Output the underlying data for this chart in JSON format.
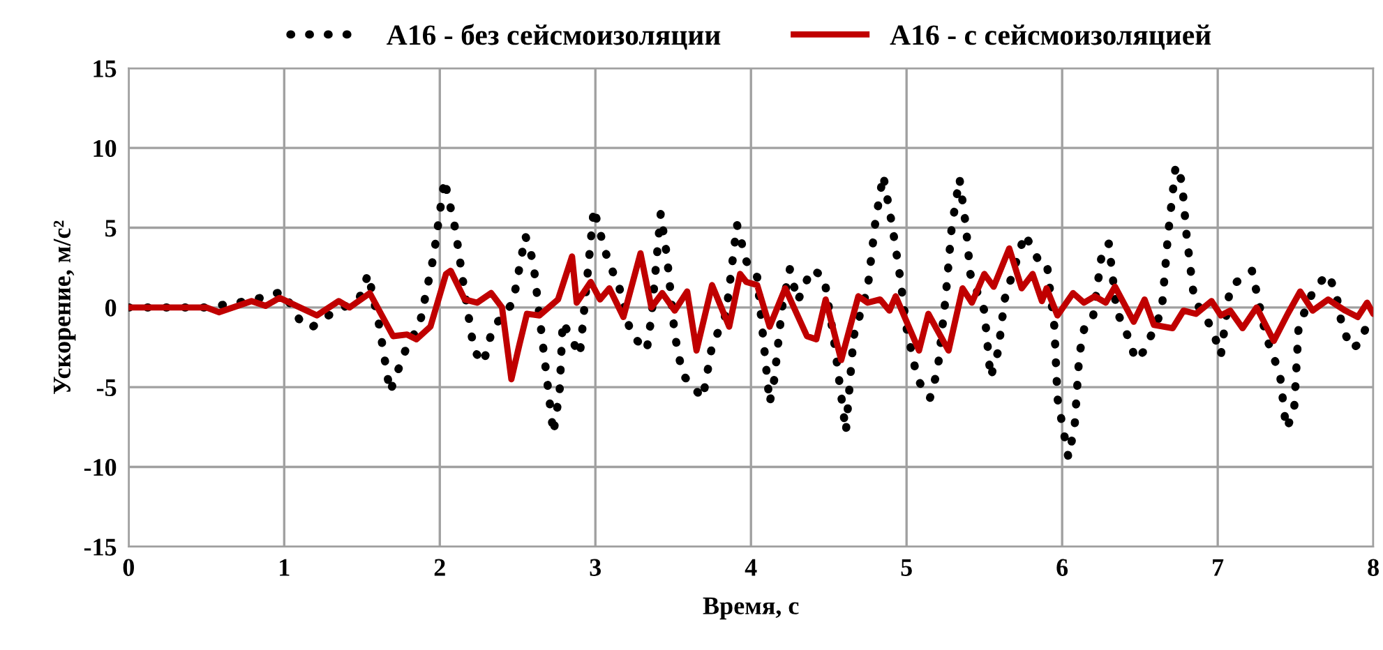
{
  "chart_data": {
    "type": "line",
    "xlabel": "Время, с",
    "ylabel": "Ускорение, м/с²",
    "xlim": [
      0,
      8
    ],
    "ylim": [
      -15,
      15
    ],
    "xticks": [
      0,
      1,
      2,
      3,
      4,
      5,
      6,
      7,
      8
    ],
    "yticks": [
      -15,
      -10,
      -5,
      0,
      5,
      10,
      15
    ],
    "grid": true,
    "legend": "top",
    "series": [
      {
        "name": "А16 - без сейсмоизоляции",
        "color": "#000000",
        "line_style": "dotted",
        "x": [
          0,
          0.5,
          0.7,
          0.85,
          0.99,
          1.1,
          1.17,
          1.3,
          1.48,
          1.54,
          1.61,
          1.68,
          1.79,
          1.87,
          1.96,
          2.03,
          2.1,
          2.15,
          2.22,
          2.28,
          2.34,
          2.47,
          2.55,
          2.6,
          2.65,
          2.73,
          2.77,
          2.79,
          2.9,
          2.99,
          3.06,
          3.1,
          3.15,
          3.23,
          3.33,
          3.36,
          3.42,
          3.46,
          3.51,
          3.56,
          3.69,
          3.75,
          3.84,
          3.91,
          3.97,
          4.04,
          4.12,
          4.15,
          4.2,
          4.25,
          4.3,
          4.39,
          4.47,
          4.53,
          4.61,
          4.66,
          4.75,
          4.8,
          4.85,
          4.91,
          4.96,
          5.0,
          5.07,
          5.15,
          5.2,
          5.25,
          5.29,
          5.34,
          5.38,
          5.41,
          5.5,
          5.54,
          5.59,
          5.63,
          5.76,
          5.84,
          5.9,
          5.95,
          5.97,
          6.04,
          6.08,
          6.11,
          6.15,
          6.2,
          6.26,
          6.3,
          6.35,
          6.44,
          6.47,
          6.53,
          6.64,
          6.68,
          6.73,
          6.77,
          6.8,
          6.85,
          6.92,
          6.98,
          7.02,
          7.08,
          7.22,
          7.26,
          7.31,
          7.4,
          7.44,
          7.49,
          7.52,
          7.62,
          7.71,
          7.76,
          7.8,
          7.86,
          7.92,
          7.98
        ],
        "values": [
          0,
          0,
          0.3,
          0.6,
          1.0,
          -0.8,
          -1.3,
          -0.4,
          0.5,
          2.1,
          -1.1,
          -5.3,
          -2.4,
          -1.1,
          3.2,
          8.0,
          4.9,
          1.6,
          -2.7,
          -3.5,
          -1.3,
          0.3,
          4.5,
          2.9,
          -1.3,
          -7.9,
          -5.3,
          -0.9,
          -3.0,
          6.2,
          3.6,
          2.5,
          1.4,
          -1.7,
          -2.7,
          -0.6,
          5.9,
          3.2,
          -1.7,
          -4.2,
          -5.7,
          -2.4,
          -0.4,
          5.2,
          2.9,
          1.9,
          -6.0,
          -4.5,
          0,
          2.4,
          0.4,
          2.4,
          1.9,
          -1.8,
          -7.8,
          -1.8,
          1.2,
          5.4,
          8.3,
          5.0,
          1.8,
          -1.3,
          -4.5,
          -5.7,
          -3.9,
          0.5,
          5.0,
          8.1,
          5.2,
          2.1,
          -0.2,
          -4.4,
          -2.7,
          0.5,
          4.6,
          3.1,
          2.9,
          -1.2,
          -5.7,
          -9.4,
          -7.5,
          -3.0,
          -0.9,
          -0.5,
          3.7,
          4.0,
          -0.2,
          -2.2,
          -3.3,
          -2.7,
          -0.2,
          4.5,
          8.9,
          7.9,
          4.5,
          0.4,
          -0.5,
          -1.8,
          -3.0,
          1.3,
          2.3,
          0.5,
          -1.8,
          -4.2,
          -7.6,
          -6.6,
          -1.2,
          1.2,
          2.1,
          0.9,
          -1.2,
          -2.6,
          -2.2,
          -0.4
        ]
      },
      {
        "name": "А16 - с сейсмоизоляцией",
        "color": "#c00000",
        "line_style": "solid",
        "x": [
          0,
          0.5,
          0.58,
          0.79,
          0.88,
          0.97,
          1.21,
          1.35,
          1.42,
          1.55,
          1.7,
          1.79,
          1.85,
          1.94,
          2.04,
          2.07,
          2.16,
          2.24,
          2.33,
          2.4,
          2.46,
          2.51,
          2.56,
          2.64,
          2.76,
          2.85,
          2.88,
          2.97,
          3.03,
          3.09,
          3.18,
          3.29,
          3.36,
          3.43,
          3.51,
          3.59,
          3.65,
          3.75,
          3.86,
          3.93,
          3.97,
          4.04,
          4.12,
          4.22,
          4.36,
          4.42,
          4.48,
          4.58,
          4.69,
          4.75,
          4.83,
          4.89,
          4.93,
          5.08,
          5.14,
          5.27,
          5.36,
          5.42,
          5.5,
          5.56,
          5.66,
          5.74,
          5.81,
          5.87,
          5.9,
          5.97,
          6.07,
          6.14,
          6.21,
          6.28,
          6.34,
          6.46,
          6.53,
          6.59,
          6.71,
          6.78,
          6.86,
          6.96,
          7.02,
          7.08,
          7.16,
          7.25,
          7.36,
          7.45,
          7.53,
          7.61,
          7.71,
          7.82,
          7.9,
          7.96,
          8.0
        ],
        "values": [
          0,
          0,
          -0.3,
          0.4,
          0.1,
          0.6,
          -0.5,
          0.4,
          0,
          0.9,
          -1.8,
          -1.7,
          -2.0,
          -1.2,
          2.1,
          2.3,
          0.5,
          0.3,
          0.9,
          0,
          -4.5,
          -2.4,
          -0.4,
          -0.5,
          0.5,
          3.2,
          0.3,
          1.6,
          0.5,
          1.2,
          -0.6,
          3.4,
          0,
          0.9,
          -0.2,
          1.0,
          -2.7,
          1.4,
          -1.2,
          2.1,
          1.6,
          1.4,
          -1.2,
          1.2,
          -1.8,
          -2.0,
          0.5,
          -3.3,
          0.7,
          0.3,
          0.5,
          -0.2,
          0.7,
          -2.7,
          -0.4,
          -2.7,
          1.2,
          0.3,
          2.1,
          1.3,
          3.7,
          1.2,
          2.1,
          0.4,
          1.2,
          -0.5,
          0.9,
          0.3,
          0.7,
          0.3,
          1.3,
          -0.9,
          0.5,
          -1.1,
          -1.3,
          -0.2,
          -0.4,
          0.4,
          -0.5,
          -0.2,
          -1.3,
          0,
          -2.1,
          -0.4,
          1.0,
          -0.2,
          0.5,
          -0.2,
          -0.6,
          0.3,
          -0.4
        ]
      }
    ]
  }
}
